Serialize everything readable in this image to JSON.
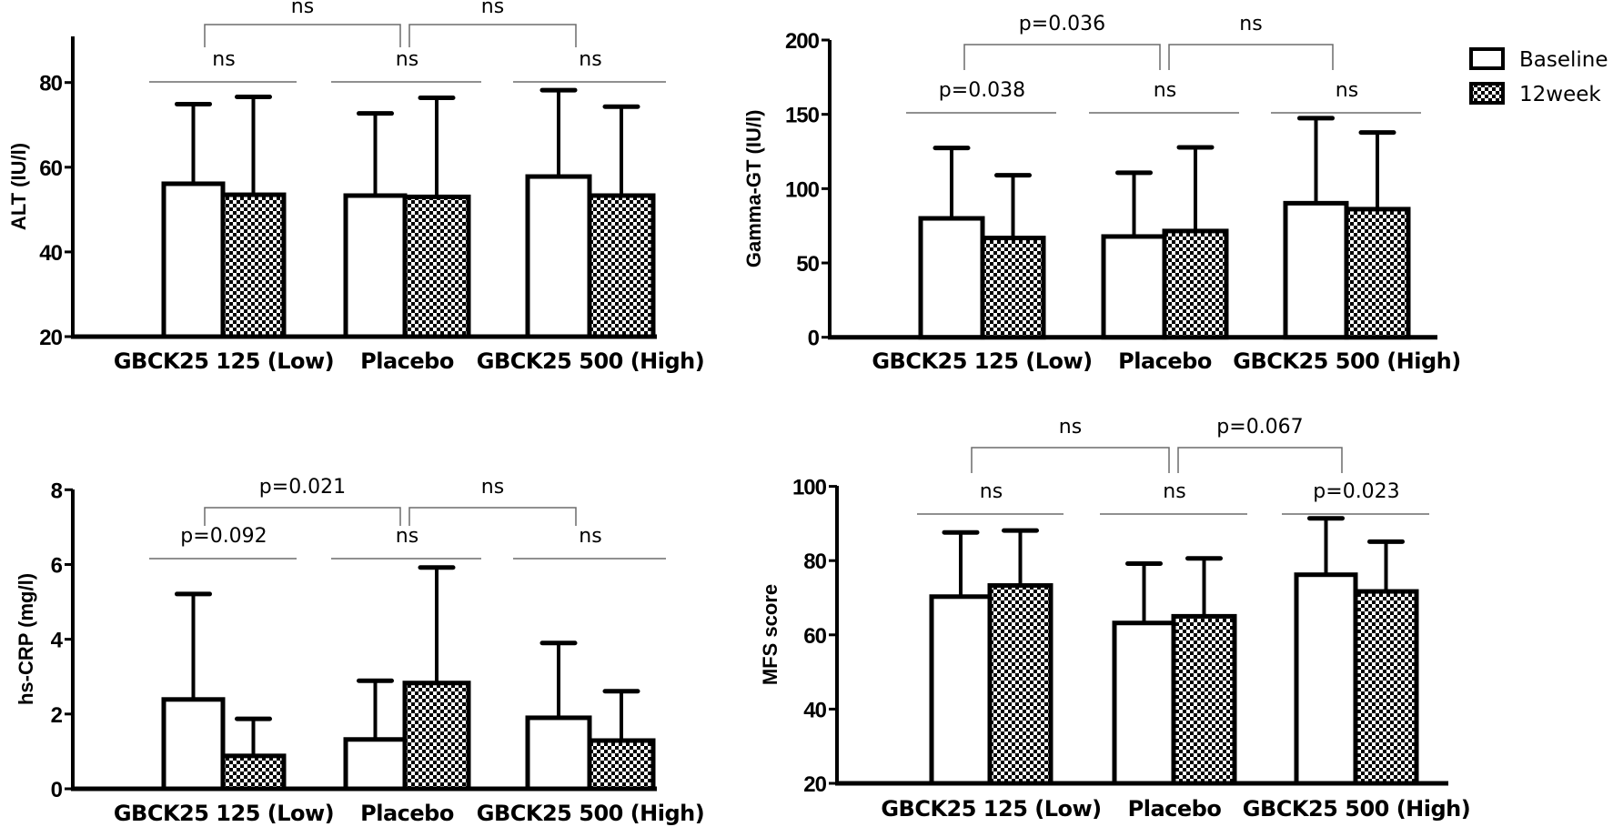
{
  "chart_data": [
    {
      "type": "bar",
      "panel": "top-left",
      "ylabel": "ALT (IU/l)",
      "xlabel": "",
      "ylim": [
        20,
        90
      ],
      "yticks": [
        20,
        40,
        60,
        80
      ],
      "categories": [
        "GBCK25 125 (Low)",
        "Placebo",
        "GBCK25 500 (High)"
      ],
      "series": [
        {
          "name": "Baseline",
          "values": [
            56.1,
            53.3,
            57.8
          ],
          "error_upper": [
            74.9,
            72.7,
            78.2
          ]
        },
        {
          "name": "12week",
          "values": [
            53.5,
            53.0,
            53.3
          ],
          "error_upper": [
            76.6,
            76.4,
            74.3
          ]
        }
      ],
      "within_group_tests": [
        "ns",
        "ns",
        "ns"
      ],
      "between_group_tests": [
        {
          "from": "GBCK25 125 (Low)",
          "to": "Placebo",
          "label": "ns"
        },
        {
          "from": "Placebo",
          "to": "GBCK25 500 (High)",
          "label": "ns"
        }
      ]
    },
    {
      "type": "bar",
      "panel": "top-right",
      "ylabel": "Gamma-GT (IU/l)",
      "xlabel": "",
      "ylim": [
        0,
        200
      ],
      "yticks": [
        0,
        50,
        100,
        150,
        200
      ],
      "categories": [
        "GBCK25 125 (Low)",
        "Placebo",
        "GBCK25 500 (High)"
      ],
      "series": [
        {
          "name": "Baseline",
          "values": [
            80.0,
            67.8,
            90.2
          ],
          "error_upper": [
            127.4,
            110.7,
            147.4
          ]
        },
        {
          "name": "12week",
          "values": [
            66.8,
            71.5,
            86.2
          ],
          "error_upper": [
            109.0,
            127.8,
            137.8
          ]
        }
      ],
      "within_group_tests": [
        "p=0.038",
        "ns",
        "ns"
      ],
      "between_group_tests": [
        {
          "from": "GBCK25 125 (Low)",
          "to": "Placebo",
          "label": "p=0.036"
        },
        {
          "from": "Placebo",
          "to": "GBCK25 500 (High)",
          "label": "ns"
        }
      ]
    },
    {
      "type": "bar",
      "panel": "bottom-left",
      "ylabel": "hs-CRP (mg/l)",
      "xlabel": "",
      "ylim": [
        0,
        8
      ],
      "yticks": [
        0,
        2,
        4,
        6,
        8
      ],
      "categories": [
        "GBCK25 125 (Low)",
        "Placebo",
        "GBCK25 500 (High)"
      ],
      "series": [
        {
          "name": "Baseline",
          "values": [
            2.39,
            1.32,
            1.9
          ],
          "error_upper": [
            5.21,
            2.89,
            3.9
          ]
        },
        {
          "name": "12week",
          "values": [
            0.88,
            2.83,
            1.29
          ],
          "error_upper": [
            1.87,
            5.92,
            2.61
          ]
        }
      ],
      "within_group_tests": [
        "p=0.092",
        "ns",
        "ns"
      ],
      "between_group_tests": [
        {
          "from": "GBCK25 125 (Low)",
          "to": "Placebo",
          "label": "p=0.021"
        },
        {
          "from": "Placebo",
          "to": "GBCK25 500 (High)",
          "label": "ns"
        }
      ]
    },
    {
      "type": "bar",
      "panel": "bottom-right",
      "ylabel": "MFS score",
      "xlabel": "",
      "ylim": [
        20,
        100
      ],
      "yticks": [
        20,
        40,
        60,
        80,
        100
      ],
      "categories": [
        "GBCK25 125 (Low)",
        "Placebo",
        "GBCK25 500 (High)"
      ],
      "series": [
        {
          "name": "Baseline",
          "values": [
            70.3,
            63.2,
            76.2
          ],
          "error_upper": [
            87.6,
            79.2,
            91.4
          ]
        },
        {
          "name": "12week",
          "values": [
            73.3,
            65.0,
            71.7
          ],
          "error_upper": [
            88.1,
            80.6,
            85.1
          ]
        }
      ],
      "within_group_tests": [
        "ns",
        "ns",
        "p=0.023"
      ],
      "between_group_tests": [
        {
          "from": "GBCK25 125 (Low)",
          "to": "Placebo",
          "label": "ns"
        },
        {
          "from": "Placebo",
          "to": "GBCK25 500 (High)",
          "label": "p=0.067"
        }
      ]
    }
  ],
  "legend": {
    "placement": "top-right",
    "items": [
      {
        "label": "Baseline",
        "pattern": "open"
      },
      {
        "label": "12week",
        "pattern": "checkered"
      }
    ]
  },
  "colors": {
    "ink": "#000000",
    "bracket": "#6b6b6b",
    "fill": "#ffffff"
  }
}
